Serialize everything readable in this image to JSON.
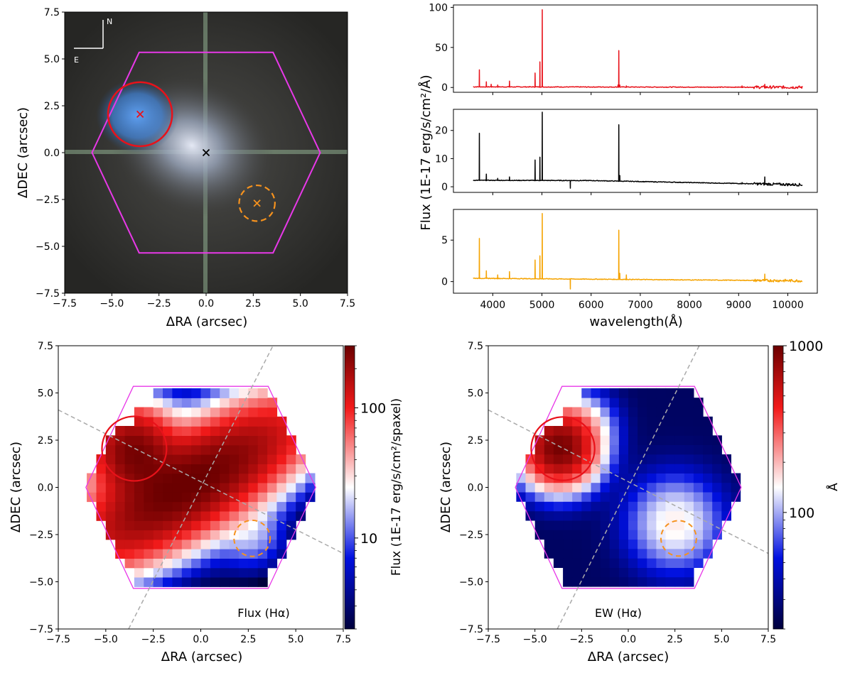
{
  "chart_data": [
    {
      "id": "image_panel",
      "type": "image",
      "xlabel": "ΔRA (arcsec)",
      "ylabel": "ΔDEC (arcsec)",
      "xlim": [
        -7.5,
        7.5
      ],
      "ylim": [
        -7.5,
        7.5
      ],
      "xticks": [
        "−7.5",
        "−5.0",
        "−2.5",
        "0.0",
        "2.5",
        "5.0",
        "7.5"
      ],
      "yticks": [
        "−7.5",
        "−5.0",
        "−2.5",
        "0.0",
        "2.5",
        "5.0",
        "7.5"
      ],
      "compass": {
        "north": "N",
        "east": "E"
      },
      "markers": [
        {
          "name": "red-source",
          "x": -3.5,
          "y": 2.05,
          "radius": 1.7,
          "color": "#e8121a",
          "dashed": false
        },
        {
          "name": "center",
          "x": 0.0,
          "y": 0.0,
          "color": "#000000"
        },
        {
          "name": "orange-source",
          "x": 2.7,
          "y": -2.7,
          "radius": 0.95,
          "color": "#f5921e",
          "dashed": true
        }
      ],
      "hexagon": [
        [
          -3.55,
          5.35
        ],
        [
          3.55,
          5.35
        ],
        [
          6.05,
          0.0
        ],
        [
          3.55,
          -5.35
        ],
        [
          -3.55,
          -5.35
        ],
        [
          -6.05,
          0.0
        ]
      ],
      "hexagon_color": "#e838e8"
    },
    {
      "id": "spectra",
      "type": "line",
      "xlabel": "wavelength(Å)",
      "ylabel": "Flux (1E-17 erg/s/cm²/Å)",
      "xlim": [
        3200,
        10600
      ],
      "xticks": [
        4000,
        5000,
        6000,
        7000,
        8000,
        9000,
        10000
      ],
      "series": [
        {
          "name": "red",
          "color": "#e8121a",
          "ylim": [
            -6,
            103
          ],
          "yticks": [
            0,
            50,
            100
          ],
          "continuum": [
            [
              3600,
              0.8
            ],
            [
              10300,
              0.3
            ]
          ],
          "lines": [
            [
              3727,
              22
            ],
            [
              3869,
              7
            ],
            [
              3968,
              4
            ],
            [
              4101,
              3
            ],
            [
              4340,
              8
            ],
            [
              4861,
              18
            ],
            [
              4959,
              32
            ],
            [
              5007,
              97
            ],
            [
              6548,
              3
            ],
            [
              6563,
              46
            ],
            [
              6584,
              3
            ],
            [
              6717,
              2
            ],
            [
              9069,
              2
            ],
            [
              9532,
              4
            ]
          ]
        },
        {
          "name": "black",
          "color": "#000000",
          "ylim": [
            -2,
            27.5
          ],
          "yticks": [
            0,
            10,
            20
          ],
          "continuum": [
            [
              3600,
              2.3
            ],
            [
              6000,
              2.2
            ],
            [
              10300,
              0.7
            ]
          ],
          "lines": [
            [
              3727,
              19
            ],
            [
              3869,
              4.5
            ],
            [
              4101,
              3
            ],
            [
              4340,
              3.5
            ],
            [
              4861,
              9.5
            ],
            [
              4959,
              10.5
            ],
            [
              5007,
              26.5
            ],
            [
              6563,
              22
            ],
            [
              6584,
              4
            ],
            [
              6717,
              2
            ],
            [
              9069,
              1.5
            ],
            [
              9532,
              3.5
            ]
          ]
        },
        {
          "name": "orange",
          "color": "#f5a300",
          "ylim": [
            -1.4,
            8.7
          ],
          "yticks": [
            0,
            5
          ],
          "continuum": [
            [
              3600,
              0.4
            ],
            [
              10300,
              0.1
            ]
          ],
          "lines": [
            [
              3727,
              5.2
            ],
            [
              3869,
              1.3
            ],
            [
              4101,
              0.8
            ],
            [
              4340,
              1.2
            ],
            [
              4861,
              2.6
            ],
            [
              4959,
              3.1
            ],
            [
              5007,
              8.2
            ],
            [
              6563,
              6.2
            ],
            [
              6584,
              1.0
            ],
            [
              6717,
              0.8
            ],
            [
              9532,
              0.9
            ]
          ]
        }
      ]
    },
    {
      "id": "flux_map",
      "type": "heatmap",
      "label": "Flux (Hα)",
      "xlabel": "ΔRA (arcsec)",
      "ylabel": "ΔDEC (arcsec)",
      "xlim": [
        -7.5,
        7.5
      ],
      "ylim": [
        -7.5,
        7.5
      ],
      "xticks": [
        "−7.5",
        "−5.0",
        "−2.5",
        "0.0",
        "2.5",
        "5.0",
        "7.5"
      ],
      "yticks": [
        "−7.5",
        "−5.0",
        "−2.5",
        "0.0",
        "2.5",
        "5.0",
        "7.5"
      ],
      "colorbar_label": "Flux (1E-17 erg/s/cm²/spaxel)",
      "colorbar_ticks": [
        "100",
        "10"
      ],
      "scale": "log",
      "vmin": 2,
      "vmax": 300
    },
    {
      "id": "ew_map",
      "type": "heatmap",
      "label": "EW (Hα)",
      "xlabel": "ΔRA (arcsec)",
      "ylabel": "ΔDEC (arcsec)",
      "xlim": [
        -7.5,
        7.5
      ],
      "ylim": [
        -7.5,
        7.5
      ],
      "xticks": [
        "−7.5",
        "−5.0",
        "−2.5",
        "0.0",
        "2.5",
        "5.0",
        "7.5"
      ],
      "yticks": [
        "−7.5",
        "−5.0",
        "−2.5",
        "0.0",
        "2.5",
        "5.0",
        "7.5"
      ],
      "colorbar_label": "Å",
      "colorbar_ticks": [
        "1000",
        "100"
      ],
      "scale": "log",
      "vmin": 20,
      "vmax": 1000
    }
  ]
}
